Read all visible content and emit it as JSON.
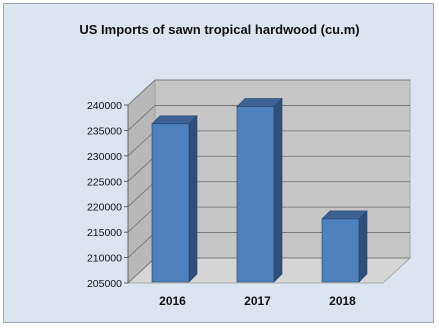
{
  "chart_data": {
    "type": "bar",
    "title": "US Imports of sawn tropical hardwood (cu.m)",
    "categories": [
      "2016",
      "2017",
      "2018"
    ],
    "values": [
      236300,
      239700,
      217600
    ],
    "xlabel": "",
    "ylabel": "",
    "ylim": [
      205000,
      240000
    ],
    "yticks": [
      205000,
      210000,
      215000,
      220000,
      225000,
      230000,
      235000,
      240000
    ],
    "grid": true,
    "legend": "none",
    "bar_style": "3d-column",
    "colors": {
      "bar_front": "#4f81bd",
      "bar_side": "#2f4f7a",
      "bar_top": "#3d6396",
      "plot_wall": "#c6c6c6",
      "background": "#dbe5f1"
    }
  }
}
